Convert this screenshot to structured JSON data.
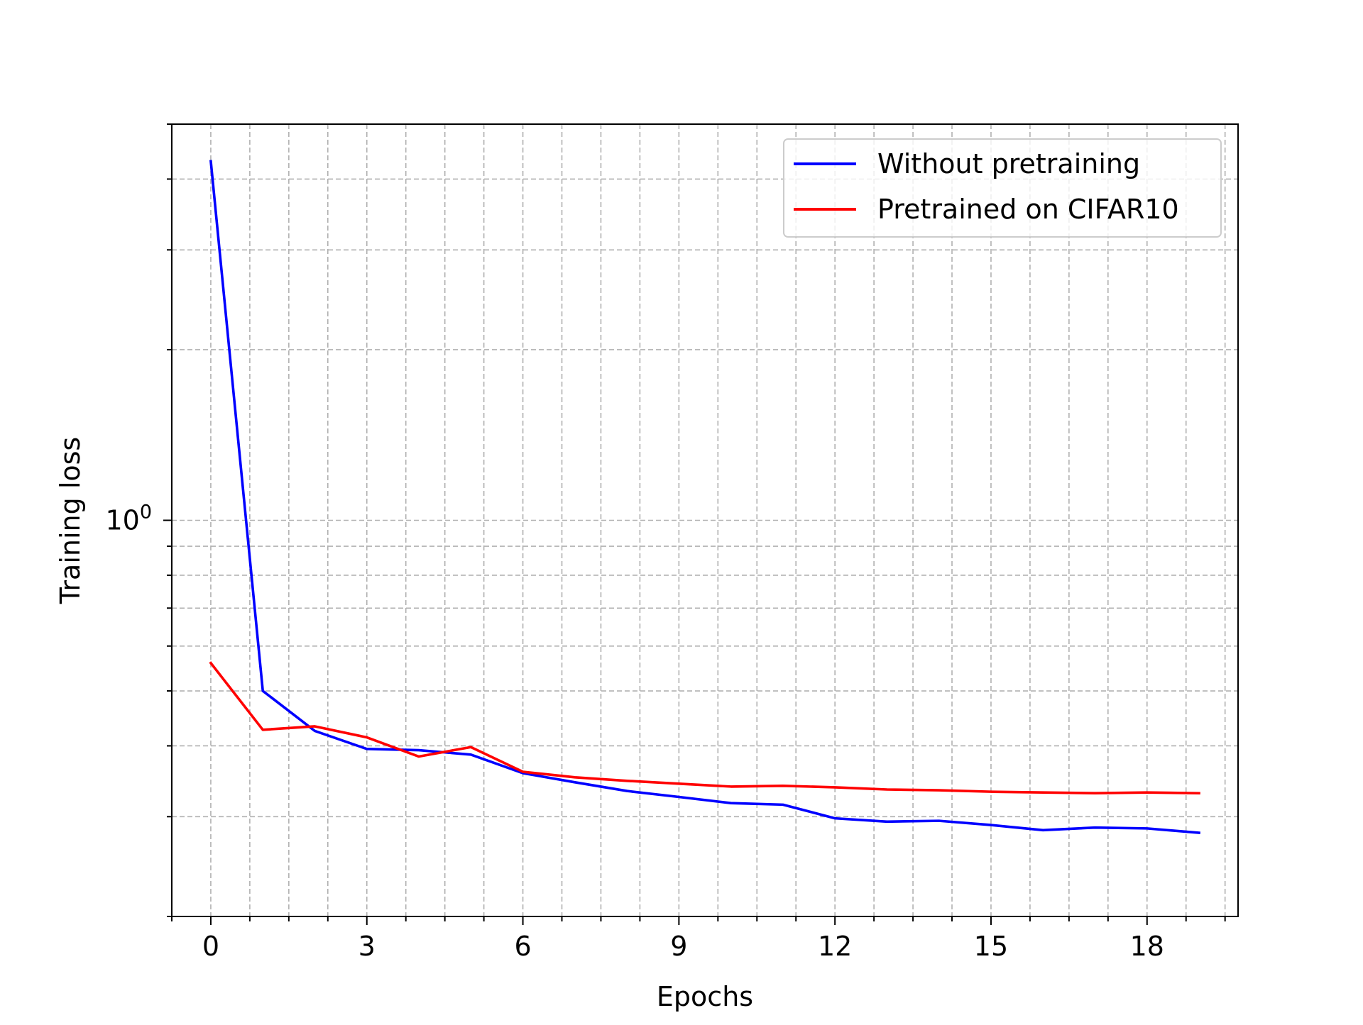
{
  "chart_data": {
    "type": "line",
    "title": "",
    "xlabel": "Epochs",
    "ylabel": "Training loss",
    "yscale": "log",
    "xlim": [
      -0.75,
      19.75
    ],
    "ylim": [
      0.2,
      5.0
    ],
    "grid": true,
    "legend_position": "top-right",
    "x_ticks": [
      0,
      3,
      6,
      9,
      12,
      15,
      18
    ],
    "x_tick_labels": [
      "0",
      "3",
      "6",
      "9",
      "12",
      "15",
      "18"
    ],
    "y_tick_labels": [
      {
        "base": "10",
        "exponent": "0",
        "value": 1.0
      }
    ],
    "x": [
      0,
      1,
      2,
      3,
      4,
      5,
      6,
      7,
      8,
      9,
      10,
      11,
      12,
      13,
      14,
      15,
      16,
      17,
      18,
      19
    ],
    "series": [
      {
        "name": "Without pretraining",
        "color": "#0000ff",
        "values": [
          4.3,
          0.5,
          0.425,
          0.395,
          0.393,
          0.386,
          0.358,
          0.345,
          0.333,
          0.325,
          0.317,
          0.315,
          0.298,
          0.294,
          0.295,
          0.29,
          0.284,
          0.287,
          0.286,
          0.281
        ]
      },
      {
        "name": "Pretrained on CIFAR10",
        "color": "#ff0000",
        "values": [
          0.56,
          0.427,
          0.433,
          0.414,
          0.383,
          0.398,
          0.36,
          0.352,
          0.347,
          0.343,
          0.339,
          0.34,
          0.338,
          0.335,
          0.334,
          0.332,
          0.331,
          0.33,
          0.331,
          0.33
        ]
      }
    ]
  }
}
